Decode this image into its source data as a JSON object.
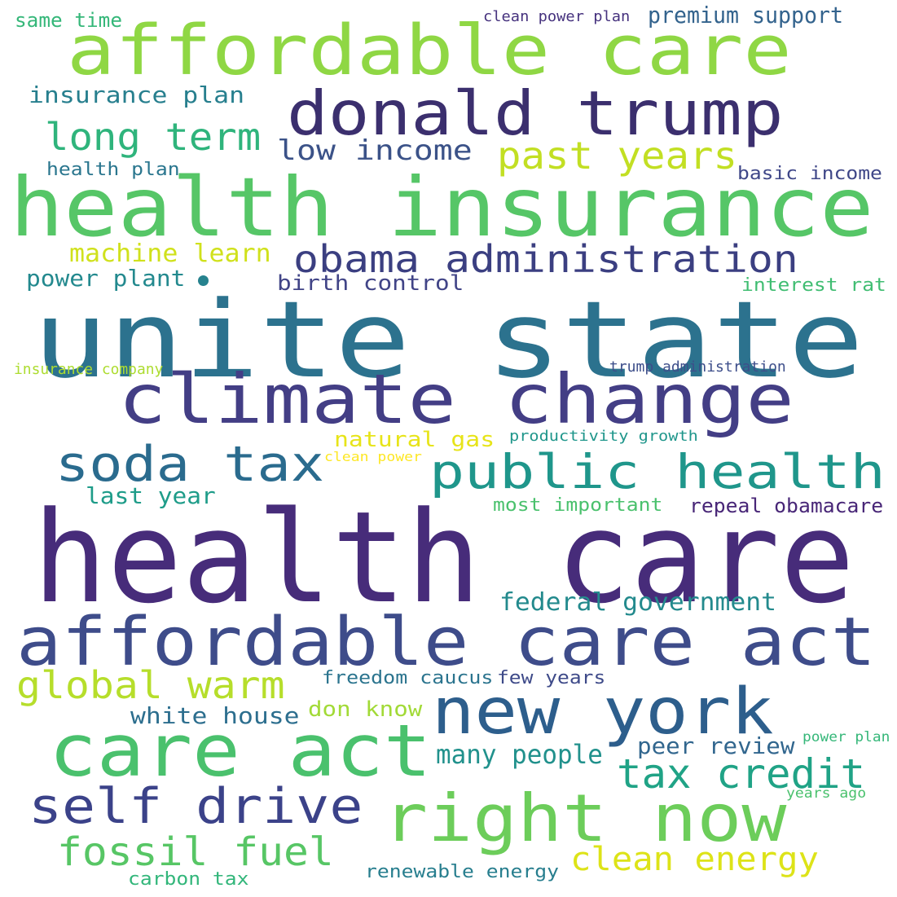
{
  "cloud": {
    "words": [
      {
        "text": "health care",
        "color": "#472c7a"
      },
      {
        "text": "unite state",
        "color": "#2c728e"
      },
      {
        "text": "health insurance",
        "color": "#56c667"
      },
      {
        "text": "affordable care act",
        "color": "#3e4c8a"
      },
      {
        "text": "affordable care",
        "color": "#8fd744"
      },
      {
        "text": "climate change",
        "color": "#433e85"
      },
      {
        "text": "care act",
        "color": "#4ac16d"
      },
      {
        "text": "donald trump",
        "color": "#3b2f6e"
      },
      {
        "text": "right now",
        "color": "#6ccd5a"
      },
      {
        "text": "new york",
        "color": "#2d5e8c"
      },
      {
        "text": "public health",
        "color": "#1f968b"
      },
      {
        "text": "self drive",
        "color": "#3b4289"
      },
      {
        "text": "obama administration",
        "color": "#3b3f81"
      },
      {
        "text": "soda tax",
        "color": "#2a6b8e"
      },
      {
        "text": "tax credit",
        "color": "#20a386"
      },
      {
        "text": "fossil fuel",
        "color": "#57c665"
      },
      {
        "text": "global warm",
        "color": "#b6de2b"
      },
      {
        "text": "long term",
        "color": "#2fb47c"
      },
      {
        "text": "past years",
        "color": "#c2df23"
      },
      {
        "text": "clean energy",
        "color": "#dde318"
      },
      {
        "text": "low income",
        "color": "#3b5288"
      },
      {
        "text": "federal government",
        "color": "#238a8d"
      },
      {
        "text": "many people",
        "color": "#21918c"
      },
      {
        "text": "premium support",
        "color": "#33638d"
      },
      {
        "text": "machine learn",
        "color": "#d0e11c"
      },
      {
        "text": "white house",
        "color": "#2c6e8e"
      },
      {
        "text": "insurance plan",
        "color": "#277f8e"
      },
      {
        "text": "power plant",
        "color": "#23898e"
      },
      {
        "text": "peer review",
        "color": "#31668e"
      },
      {
        "text": "natural gas",
        "color": "#e7e419"
      },
      {
        "text": "birth control",
        "color": "#414487"
      },
      {
        "text": "don know",
        "color": "#a2da37"
      },
      {
        "text": "last year",
        "color": "#1e9c89"
      },
      {
        "text": "repeal obamacare",
        "color": "#482677"
      },
      {
        "text": "renewable energy",
        "color": "#277e8e"
      },
      {
        "text": "most important",
        "color": "#4ac16d"
      },
      {
        "text": "freedom caucus",
        "color": "#2b748e"
      },
      {
        "text": "few years",
        "color": "#3e4a89"
      },
      {
        "text": "carbon tax",
        "color": "#32b67a"
      },
      {
        "text": "same time",
        "color": "#35b779"
      },
      {
        "text": "health plan",
        "color": "#2a768e"
      },
      {
        "text": "basic income",
        "color": "#3f4788"
      },
      {
        "text": "interest rat",
        "color": "#40bd72"
      },
      {
        "text": "productivity growth",
        "color": "#1f968b"
      },
      {
        "text": "clean power plan",
        "color": "#46327e"
      },
      {
        "text": "trump administration",
        "color": "#3d4e8a"
      },
      {
        "text": "insurance company",
        "color": "#addc30"
      },
      {
        "text": "power plan",
        "color": "#35b779"
      },
      {
        "text": "years ago",
        "color": "#4ac16d"
      },
      {
        "text": "clean power",
        "color": "#fde725"
      }
    ],
    "dot_color": "#26828e"
  }
}
